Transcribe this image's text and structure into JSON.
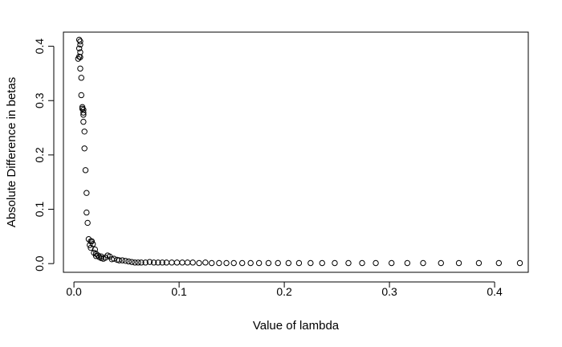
{
  "chart_data": {
    "type": "scatter",
    "title": "",
    "xlabel": "Value of lambda",
    "ylabel": "Absolute Difference in betas",
    "xlim": [
      -0.01,
      0.432
    ],
    "ylim": [
      -0.016,
      0.426
    ],
    "x_ticks": [
      0.0,
      0.1,
      0.2,
      0.3,
      0.4
    ],
    "x_tick_labels": [
      "0.0",
      "0.1",
      "0.2",
      "0.3",
      "0.4"
    ],
    "y_ticks": [
      0.0,
      0.1,
      0.2,
      0.3,
      0.4
    ],
    "y_tick_labels": [
      "0.0",
      "0.1",
      "0.2",
      "0.3",
      "0.4"
    ],
    "grid": false,
    "marker": "open-circle",
    "marker_color": "#000000",
    "series": [
      {
        "points": [
          [
            0.005,
            0.412
          ],
          [
            0.006,
            0.409
          ],
          [
            0.006,
            0.403
          ],
          [
            0.005,
            0.396
          ],
          [
            0.006,
            0.389
          ],
          [
            0.005,
            0.381
          ],
          [
            0.006,
            0.38
          ],
          [
            0.004,
            0.377
          ],
          [
            0.006,
            0.359
          ],
          [
            0.007,
            0.342
          ],
          [
            0.007,
            0.31
          ],
          [
            0.008,
            0.288
          ],
          [
            0.008,
            0.285
          ],
          [
            0.009,
            0.283
          ],
          [
            0.009,
            0.278
          ],
          [
            0.009,
            0.274
          ],
          [
            0.009,
            0.261
          ],
          [
            0.01,
            0.243
          ],
          [
            0.01,
            0.212
          ],
          [
            0.011,
            0.172
          ],
          [
            0.012,
            0.13
          ],
          [
            0.012,
            0.094
          ],
          [
            0.013,
            0.075
          ],
          [
            0.014,
            0.045
          ],
          [
            0.016,
            0.041
          ],
          [
            0.017,
            0.041
          ],
          [
            0.015,
            0.034
          ],
          [
            0.018,
            0.036
          ],
          [
            0.016,
            0.029
          ],
          [
            0.02,
            0.026
          ],
          [
            0.019,
            0.02
          ],
          [
            0.021,
            0.018
          ],
          [
            0.021,
            0.014
          ],
          [
            0.023,
            0.015
          ],
          [
            0.024,
            0.012
          ],
          [
            0.026,
            0.013
          ],
          [
            0.026,
            0.01
          ],
          [
            0.028,
            0.009
          ],
          [
            0.03,
            0.011
          ],
          [
            0.032,
            0.015
          ],
          [
            0.034,
            0.013
          ],
          [
            0.036,
            0.008
          ],
          [
            0.038,
            0.009
          ],
          [
            0.041,
            0.007
          ],
          [
            0.043,
            0.006
          ],
          [
            0.046,
            0.006
          ],
          [
            0.049,
            0.005
          ],
          [
            0.052,
            0.004
          ],
          [
            0.055,
            0.003
          ],
          [
            0.058,
            0.002
          ],
          [
            0.061,
            0.002
          ],
          [
            0.064,
            0.002
          ],
          [
            0.068,
            0.002
          ],
          [
            0.072,
            0.003
          ],
          [
            0.076,
            0.002
          ],
          [
            0.08,
            0.002
          ],
          [
            0.084,
            0.002
          ],
          [
            0.088,
            0.002
          ],
          [
            0.093,
            0.002
          ],
          [
            0.098,
            0.002
          ],
          [
            0.103,
            0.002
          ],
          [
            0.108,
            0.002
          ],
          [
            0.113,
            0.002
          ],
          [
            0.119,
            0.001
          ],
          [
            0.125,
            0.002
          ],
          [
            0.131,
            0.001
          ],
          [
            0.138,
            0.001
          ],
          [
            0.145,
            0.001
          ],
          [
            0.152,
            0.001
          ],
          [
            0.16,
            0.001
          ],
          [
            0.168,
            0.001
          ],
          [
            0.176,
            0.001
          ],
          [
            0.185,
            0.001
          ],
          [
            0.194,
            0.001
          ],
          [
            0.204,
            0.001
          ],
          [
            0.214,
            0.001
          ],
          [
            0.225,
            0.001
          ],
          [
            0.236,
            0.001
          ],
          [
            0.248,
            0.001
          ],
          [
            0.261,
            0.001
          ],
          [
            0.274,
            0.001
          ],
          [
            0.287,
            0.001
          ],
          [
            0.302,
            0.001
          ],
          [
            0.317,
            0.001
          ],
          [
            0.332,
            0.001
          ],
          [
            0.349,
            0.001
          ],
          [
            0.366,
            0.001
          ],
          [
            0.385,
            0.001
          ],
          [
            0.404,
            0.001
          ],
          [
            0.424,
            0.001
          ]
        ]
      }
    ]
  }
}
